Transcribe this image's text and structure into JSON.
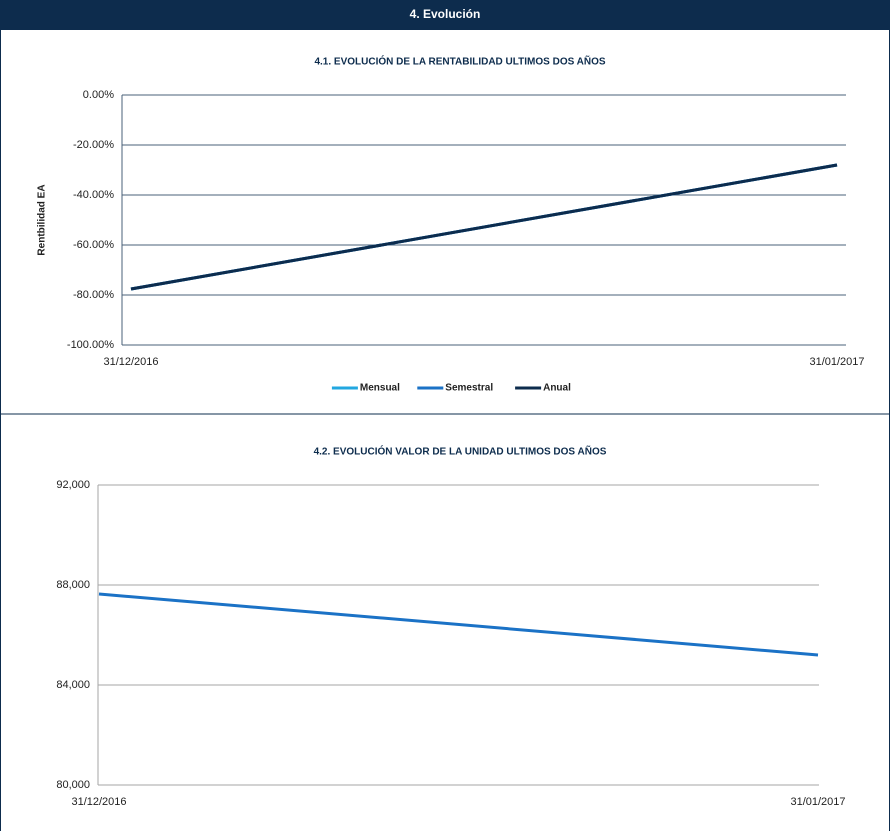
{
  "header": {
    "title": "4. Evolución"
  },
  "chart_data": [
    {
      "type": "line",
      "title": "4.1. EVOLUCIÓN DE LA RENTABILIDAD ULTIMOS DOS AÑOS",
      "y_label": "Rentbilidad EA",
      "categories": [
        "31/12/2016",
        "31/01/2017"
      ],
      "series": [
        {
          "name": "Mensual",
          "color": "#22a7e0",
          "values": [
            -77.6,
            -28
          ]
        },
        {
          "name": "Semestral",
          "color": "#1b72c6",
          "values": [
            -77.6,
            -28
          ]
        },
        {
          "name": "Anual",
          "color": "#0d2c4d",
          "values": [
            -77.6,
            -28
          ]
        }
      ],
      "ylim": [
        -100,
        0
      ],
      "yticks": [
        {
          "value": -100,
          "label": "-100.00%"
        },
        {
          "value": -80,
          "label": "-80.00%"
        },
        {
          "value": -60,
          "label": "-60.00%"
        },
        {
          "value": -40,
          "label": "-40.00%"
        },
        {
          "value": -20,
          "label": "-20.00%"
        },
        {
          "value": 0,
          "label": "0.00%"
        }
      ],
      "grid": true,
      "legend": "bottom"
    },
    {
      "type": "line",
      "title": "4.2. EVOLUCIÓN VALOR DE LA UNIDAD ULTIMOS DOS AÑOS",
      "categories": [
        "31/12/2016",
        "31/01/2017"
      ],
      "values": [
        87640,
        85200
      ],
      "color": "#1b72c6",
      "ylim": [
        80000,
        92000
      ],
      "yticks": [
        {
          "value": 80000,
          "label": "80,000"
        },
        {
          "value": 84000,
          "label": "84,000"
        },
        {
          "value": 88000,
          "label": "88,000"
        },
        {
          "value": 92000,
          "label": "92,000"
        }
      ],
      "grid": true
    }
  ]
}
